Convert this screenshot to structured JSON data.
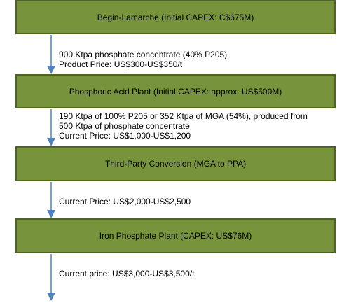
{
  "boxes": [
    {
      "label": "Begin-Lamarche (Initial CAPEX: C$675M)"
    },
    {
      "label": "Phosphoric Acid Plant (Initial CAPEX: approx. US$500M)"
    },
    {
      "label": "Third-Party Conversion (MGA to PPA)"
    },
    {
      "label": "Iron Phosphate Plant (CAPEX: US$76M)"
    }
  ],
  "notes": [
    {
      "lines": [
        "900 Ktpa phosphate concentrate (40% P205)",
        "Product Price: US$300-US$350/t"
      ]
    },
    {
      "lines": [
        "190 Ktpa of 100% P205 or 352 Ktpa of MGA (54%), produced from",
        "500 Ktpa of phosphate concentrate",
        "Current Price: US$1,000-US$1,200"
      ]
    },
    {
      "lines": [
        "Current Price: US$2,000-US$2,500"
      ]
    },
    {
      "lines": [
        "Current price: US$3,000-US$3,500/t"
      ]
    }
  ],
  "colors": {
    "box_fill": "#77933c",
    "box_border": "#4f6228",
    "arrow": "#4f81bd"
  }
}
